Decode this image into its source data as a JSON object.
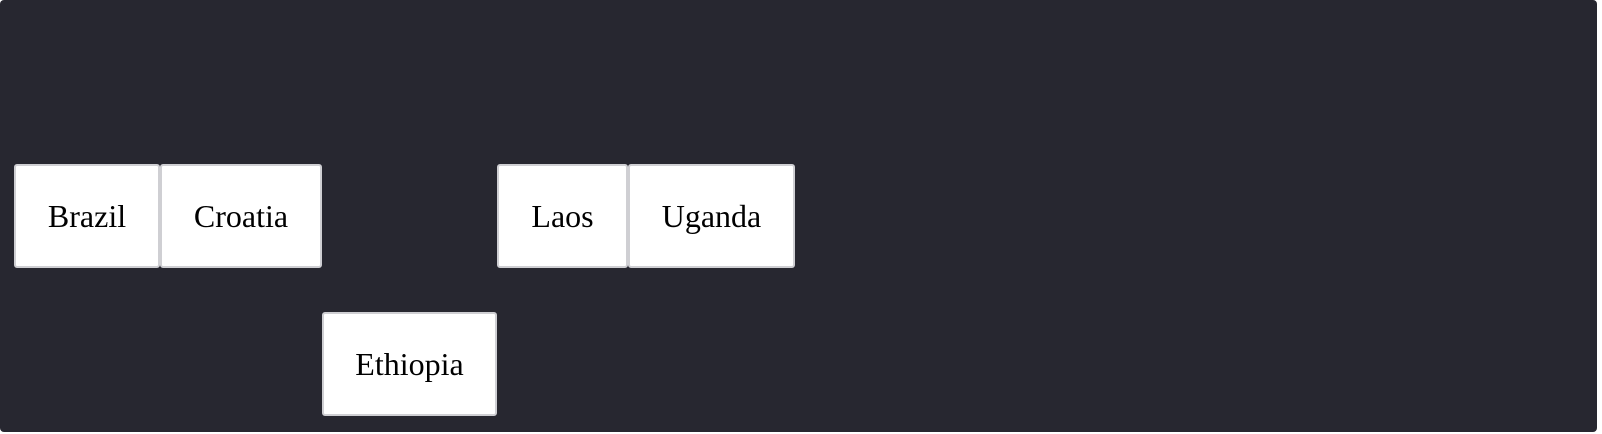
{
  "tiles": [
    {
      "label": "Brazil"
    },
    {
      "label": "Croatia"
    },
    {
      "label": "Laos"
    },
    {
      "label": "Uganda"
    },
    {
      "label": "Ethiopia"
    }
  ],
  "colors": {
    "board_background": "#272730",
    "tile_background": "#ffffff",
    "tile_border": "#cfcfd3",
    "tile_text": "#000000"
  }
}
